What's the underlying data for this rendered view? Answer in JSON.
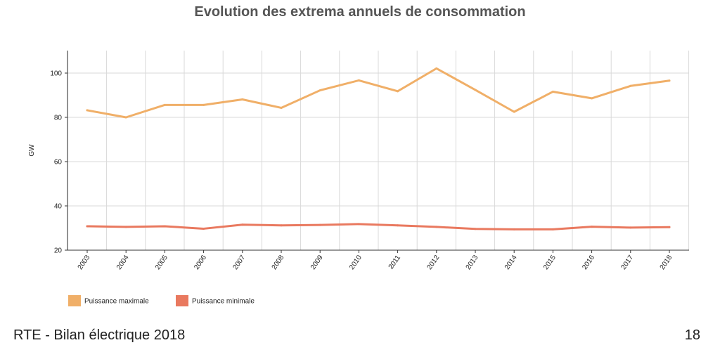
{
  "slide": {
    "title": "Evolution des extrema annuels de consommation",
    "footer_left": "RTE - Bilan électrique 2018",
    "page_number": "18"
  },
  "chart_data": {
    "type": "line",
    "title": "Evolution des extrema annuels de consommation",
    "xlabel": "",
    "ylabel": "GW",
    "ylim": [
      20,
      110
    ],
    "yticks": [
      20,
      40,
      60,
      80,
      100
    ],
    "categories": [
      "2003",
      "2004",
      "2005",
      "2006",
      "2007",
      "2008",
      "2009",
      "2010",
      "2011",
      "2012",
      "2013",
      "2014",
      "2015",
      "2016",
      "2017",
      "2018"
    ],
    "series": [
      {
        "name": "Puissance maximale",
        "color": "#F0AF68",
        "values": [
          83.2,
          80.0,
          85.6,
          85.6,
          88.1,
          84.3,
          92.2,
          96.7,
          91.8,
          102.1,
          92.4,
          82.5,
          91.6,
          88.6,
          94.2,
          96.6
        ]
      },
      {
        "name": "Puissance minimale",
        "color": "#E9795F",
        "values": [
          30.8,
          30.5,
          30.8,
          29.7,
          31.5,
          31.2,
          31.4,
          31.8,
          31.2,
          30.5,
          29.6,
          29.4,
          29.4,
          30.6,
          30.2,
          30.4
        ]
      }
    ],
    "grid": true,
    "legend_position": "bottom-left"
  }
}
